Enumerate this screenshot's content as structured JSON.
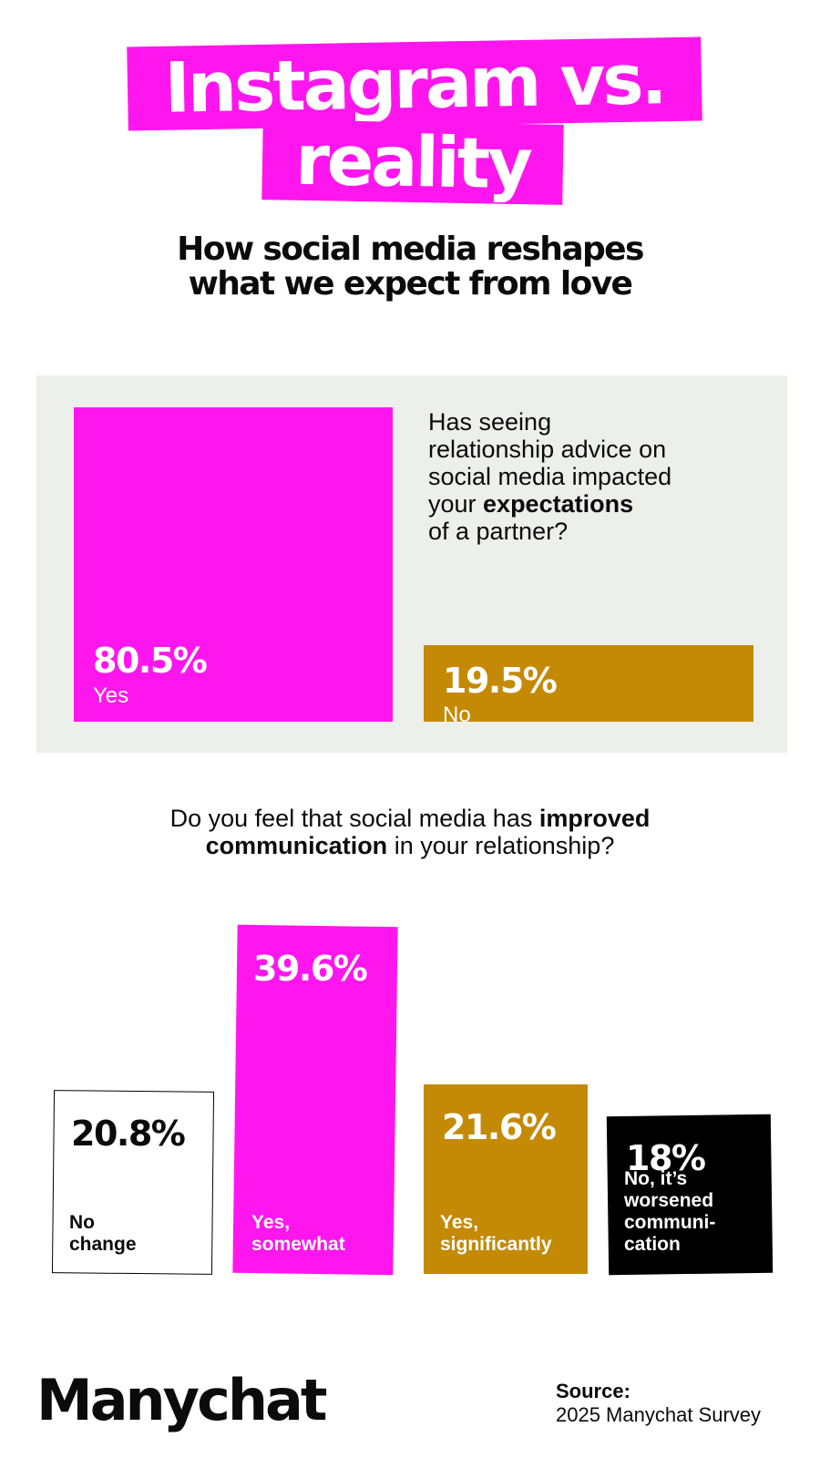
{
  "title": {
    "line1": "Instagram vs.",
    "line2": "reality"
  },
  "subtitle": {
    "line1": "How social media reshapes",
    "line2": "what we expect from love"
  },
  "colors": {
    "magenta": "#ff16ee",
    "gold": "#c48a06",
    "black": "#000000",
    "panel": "#edefea"
  },
  "chart_data": [
    {
      "type": "bar",
      "title": "Has seeing relationship advice on social media impacted your expectations of a partner?",
      "question_lines": [
        "Has seeing",
        "relationship advice on",
        "social media impacted"
      ],
      "question_bold_prefix": "your ",
      "question_bold": "expectations",
      "question_last_line": "of a partner?",
      "categories": [
        "Yes",
        "No"
      ],
      "values": [
        80.5,
        19.5
      ],
      "value_labels": [
        "80.5%",
        "19.5%"
      ],
      "colors": [
        "#ff16ee",
        "#c48a06"
      ]
    },
    {
      "type": "bar",
      "title": "Do you feel that social media has improved communication in your relationship?",
      "question_part1": "Do you feel that social media has ",
      "question_bold1": "improved",
      "question_bold2": "communication",
      "question_part2": " in your relationship?",
      "categories": [
        "No change",
        "Yes, somewhat",
        "Yes, significantly",
        "No, it’s worsened communication"
      ],
      "category_lines": [
        [
          "No",
          "change"
        ],
        [
          "Yes,",
          "somewhat"
        ],
        [
          "Yes,",
          "significantly"
        ],
        [
          "No, it’s",
          "worsened",
          "communi-",
          "cation"
        ]
      ],
      "values": [
        20.8,
        39.6,
        21.6,
        18
      ],
      "value_labels": [
        "20.8%",
        "39.6%",
        "21.6%",
        "18%"
      ],
      "colors": [
        "#ffffff",
        "#ff16ee",
        "#c48a06",
        "#000000"
      ]
    }
  ],
  "logo": "Manychat",
  "source": {
    "label": "Source:",
    "text": "2025 Manychat Survey"
  }
}
